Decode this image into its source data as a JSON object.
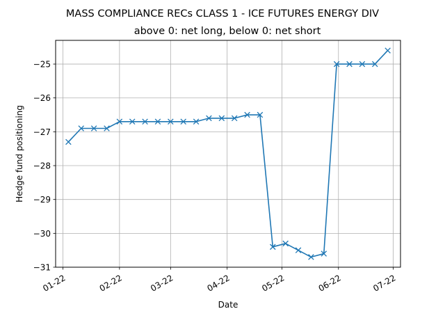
{
  "chart_data": {
    "type": "line",
    "title": "MASS COMPLIANCE RECs CLASS 1 - ICE FUTURES ENERGY DIV",
    "subtitle": "above 0: net long, below 0: net short",
    "xlabel": "Date",
    "ylabel": "Hedge fund positioning",
    "grid": true,
    "marker": "x",
    "colors": {
      "line": "#1f77b4"
    },
    "x_ticks": [
      {
        "label": "01-22",
        "date": "2022-01-01"
      },
      {
        "label": "02-22",
        "date": "2022-02-01"
      },
      {
        "label": "03-22",
        "date": "2022-03-01"
      },
      {
        "label": "04-22",
        "date": "2022-04-01"
      },
      {
        "label": "05-22",
        "date": "2022-05-01"
      },
      {
        "label": "06-22",
        "date": "2022-06-01"
      },
      {
        "label": "07-22",
        "date": "2022-07-01"
      }
    ],
    "y_ticks": [
      {
        "label": "−31",
        "value": -31
      },
      {
        "label": "−30",
        "value": -30
      },
      {
        "label": "−29",
        "value": -29
      },
      {
        "label": "−28",
        "value": -28
      },
      {
        "label": "−27",
        "value": -27
      },
      {
        "label": "−26",
        "value": -26
      },
      {
        "label": "−25",
        "value": -25
      }
    ],
    "xlim": [
      "2021-12-28",
      "2022-07-05"
    ],
    "ylim": [
      -31,
      -24.3
    ],
    "series": [
      {
        "points": [
          {
            "x": "2022-01-04",
            "y": -27.3
          },
          {
            "x": "2022-01-11",
            "y": -26.9
          },
          {
            "x": "2022-01-18",
            "y": -26.9
          },
          {
            "x": "2022-01-25",
            "y": -26.9
          },
          {
            "x": "2022-02-01",
            "y": -26.7
          },
          {
            "x": "2022-02-08",
            "y": -26.7
          },
          {
            "x": "2022-02-15",
            "y": -26.7
          },
          {
            "x": "2022-02-22",
            "y": -26.7
          },
          {
            "x": "2022-03-01",
            "y": -26.7
          },
          {
            "x": "2022-03-08",
            "y": -26.7
          },
          {
            "x": "2022-03-15",
            "y": -26.7
          },
          {
            "x": "2022-03-22",
            "y": -26.6
          },
          {
            "x": "2022-03-29",
            "y": -26.6
          },
          {
            "x": "2022-04-05",
            "y": -26.6
          },
          {
            "x": "2022-04-12",
            "y": -26.5
          },
          {
            "x": "2022-04-19",
            "y": -26.5
          },
          {
            "x": "2022-04-26",
            "y": -30.4
          },
          {
            "x": "2022-05-03",
            "y": -30.3
          },
          {
            "x": "2022-05-10",
            "y": -30.5
          },
          {
            "x": "2022-05-17",
            "y": -30.7
          },
          {
            "x": "2022-05-24",
            "y": -30.6
          },
          {
            "x": "2022-05-31",
            "y": -25.0
          },
          {
            "x": "2022-06-07",
            "y": -25.0
          },
          {
            "x": "2022-06-14",
            "y": -25.0
          },
          {
            "x": "2022-06-21",
            "y": -25.0
          },
          {
            "x": "2022-06-28",
            "y": -24.6
          }
        ]
      }
    ]
  }
}
